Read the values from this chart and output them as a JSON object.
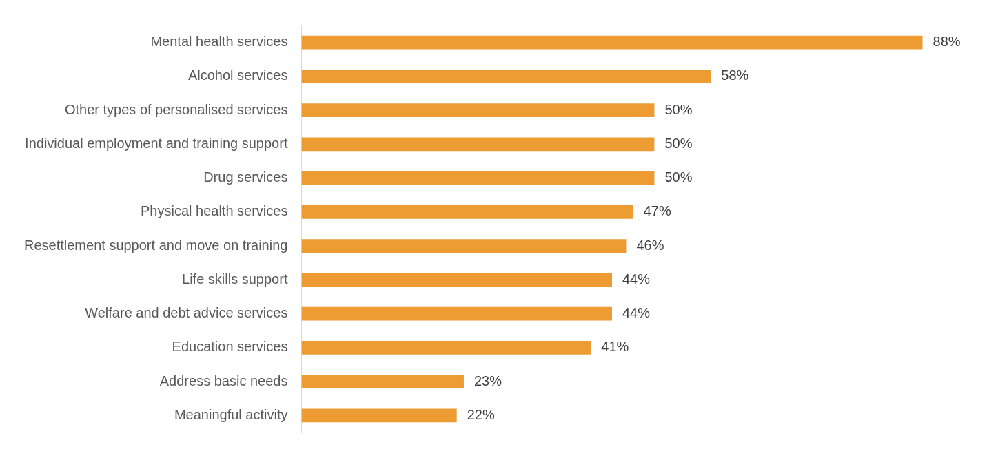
{
  "chart_data": {
    "type": "bar",
    "orientation": "horizontal",
    "categories": [
      "Mental health services",
      "Alcohol services",
      "Other types of personalised services",
      "Individual employment and training support",
      "Drug services",
      "Physical health services",
      "Resettlement support and move on training",
      "Life skills support",
      "Welfare and debt advice services",
      "Education services",
      "Address basic needs",
      "Meaningful activity"
    ],
    "values": [
      88,
      58,
      50,
      50,
      50,
      47,
      46,
      44,
      44,
      41,
      23,
      22
    ],
    "value_labels": [
      "88%",
      "58%",
      "50%",
      "50%",
      "50%",
      "47%",
      "46%",
      "44%",
      "44%",
      "41%",
      "23%",
      "22%"
    ],
    "color": "#ed9c34",
    "legend": false
  }
}
